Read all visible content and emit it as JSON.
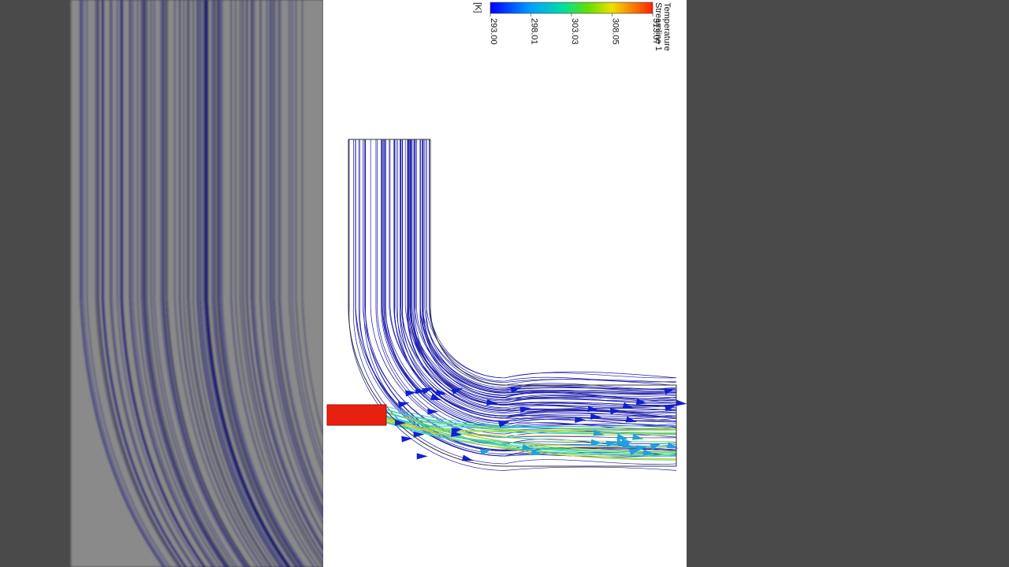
{
  "legend": {
    "title": "Temperature",
    "subtitle": "Streamline 1",
    "unit": "[K]",
    "ticks": [
      {
        "value": 293.0,
        "label": "293.00"
      },
      {
        "value": 298.01,
        "label": "298.01"
      },
      {
        "value": 303.03,
        "label": "303.03"
      },
      {
        "value": 308.05,
        "label": "308.05"
      },
      {
        "value": 313.07,
        "label": "313.07"
      }
    ]
  }
}
